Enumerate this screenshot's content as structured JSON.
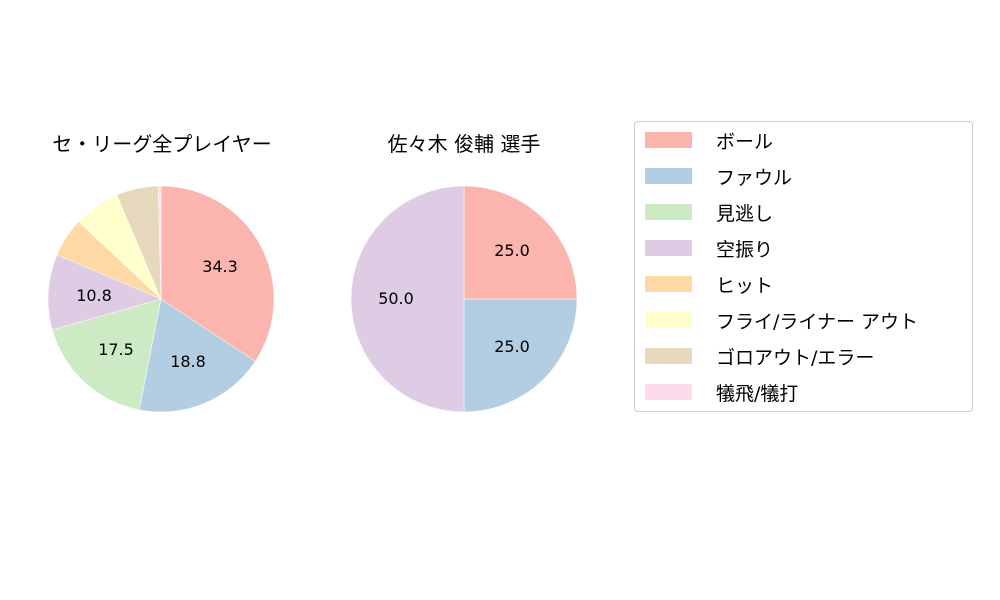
{
  "chart_data": [
    {
      "type": "pie",
      "title": "セ・リーグ全プレイヤー",
      "categories": [
        "ボール",
        "ファウル",
        "見逃し",
        "空振り",
        "ヒット",
        "フライ/ライナー アウト",
        "ゴロアウト/エラー",
        "犠飛/犠打"
      ],
      "values": [
        34.3,
        18.8,
        17.5,
        10.8,
        5.6,
        6.6,
        6.0,
        0.4
      ],
      "labels_shown": [
        "34.3",
        "18.8",
        "17.5",
        "10.8"
      ]
    },
    {
      "type": "pie",
      "title": "佐々木 俊輔  選手",
      "categories": [
        "ボール",
        "ファウル",
        "見逃し",
        "空振り",
        "ヒット",
        "フライ/ライナー アウト",
        "ゴロアウト/エラー",
        "犠飛/犠打"
      ],
      "values": [
        25.0,
        25.0,
        0,
        50.0,
        0,
        0,
        0,
        0
      ],
      "labels_shown": [
        "25.0",
        "25.0",
        "50.0"
      ]
    }
  ],
  "titles": {
    "left": "セ・リーグ全プレイヤー",
    "right": "佐々木 俊輔  選手"
  },
  "pie_labels": {
    "left": [
      "34.3",
      "18.8",
      "17.5",
      "10.8"
    ],
    "right": [
      "25.0",
      "25.0",
      "50.0"
    ]
  },
  "legend": {
    "items": [
      {
        "label": "ボール",
        "color": "#fbb4ae"
      },
      {
        "label": "ファウル",
        "color": "#b3cde3"
      },
      {
        "label": "見逃し",
        "color": "#ccebc5"
      },
      {
        "label": "空振り",
        "color": "#decbe4"
      },
      {
        "label": "ヒット",
        "color": "#fed9a6"
      },
      {
        "label": "フライ/ライナー アウト",
        "color": "#ffffcc"
      },
      {
        "label": "ゴロアウト/エラー",
        "color": "#e5d8bd"
      },
      {
        "label": "犠飛/犠打",
        "color": "#fddaec"
      }
    ]
  }
}
